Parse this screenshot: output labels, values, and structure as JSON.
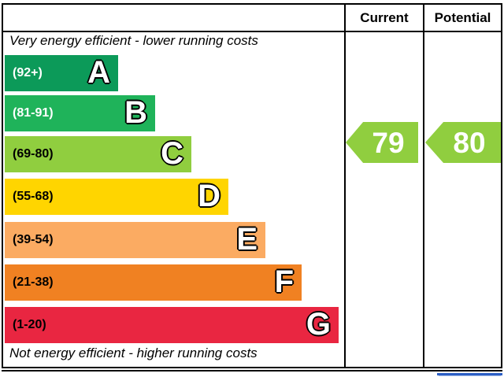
{
  "table": {
    "columns": {
      "current_label": "Current",
      "potential_label": "Potential"
    }
  },
  "notes": {
    "top": "Very energy efficient - lower running costs",
    "bottom": "Not energy efficient - higher running costs"
  },
  "bands": [
    {
      "letter": "A",
      "range_label": "(92+)",
      "range": "92+",
      "color": "#0c9a59",
      "text_color": "#ffffff"
    },
    {
      "letter": "B",
      "range_label": "(81-91)",
      "range": "81-91",
      "color": "#1fb35a",
      "text_color": "#ffffff"
    },
    {
      "letter": "C",
      "range_label": "(69-80)",
      "range": "69-80",
      "color": "#90ce3f",
      "text_color": "#000000"
    },
    {
      "letter": "D",
      "range_label": "(55-68)",
      "range": "55-68",
      "color": "#ffd500",
      "text_color": "#000000"
    },
    {
      "letter": "E",
      "range_label": "(39-54)",
      "range": "39-54",
      "color": "#fbab62",
      "text_color": "#000000"
    },
    {
      "letter": "F",
      "range_label": "(21-38)",
      "range": "21-38",
      "color": "#f08122",
      "text_color": "#000000"
    },
    {
      "letter": "G",
      "range_label": "(1-20)",
      "range": "1-20",
      "color": "#e92641",
      "text_color": "#000000"
    }
  ],
  "ratings": {
    "current": {
      "value": "79",
      "band": "C",
      "arrow_color": "#90ce3f"
    },
    "potential": {
      "value": "80",
      "band": "C",
      "arrow_color": "#90ce3f"
    }
  },
  "decor": {
    "border_color": "#000000",
    "eu_flag_edge_color": "#2b5ec5"
  },
  "chart_data": {
    "type": "bar",
    "title": "",
    "categories": [
      "A",
      "B",
      "C",
      "D",
      "E",
      "F",
      "G"
    ],
    "band_ranges": [
      "92+",
      "81-91",
      "69-80",
      "55-68",
      "39-54",
      "21-38",
      "1-20"
    ],
    "band_colors": [
      "#0c9a59",
      "#1fb35a",
      "#90ce3f",
      "#ffd500",
      "#fbab62",
      "#f08122",
      "#e92641"
    ],
    "bar_relative_lengths": [
      144,
      191,
      237,
      284,
      331,
      377,
      424
    ],
    "series": [
      {
        "name": "Current",
        "value": 79,
        "band": "C"
      },
      {
        "name": "Potential",
        "value": 80,
        "band": "C"
      }
    ],
    "annotations": [
      "Very energy efficient - lower running costs",
      "Not energy efficient - higher running costs"
    ],
    "legend_position": "none",
    "grid": false
  }
}
